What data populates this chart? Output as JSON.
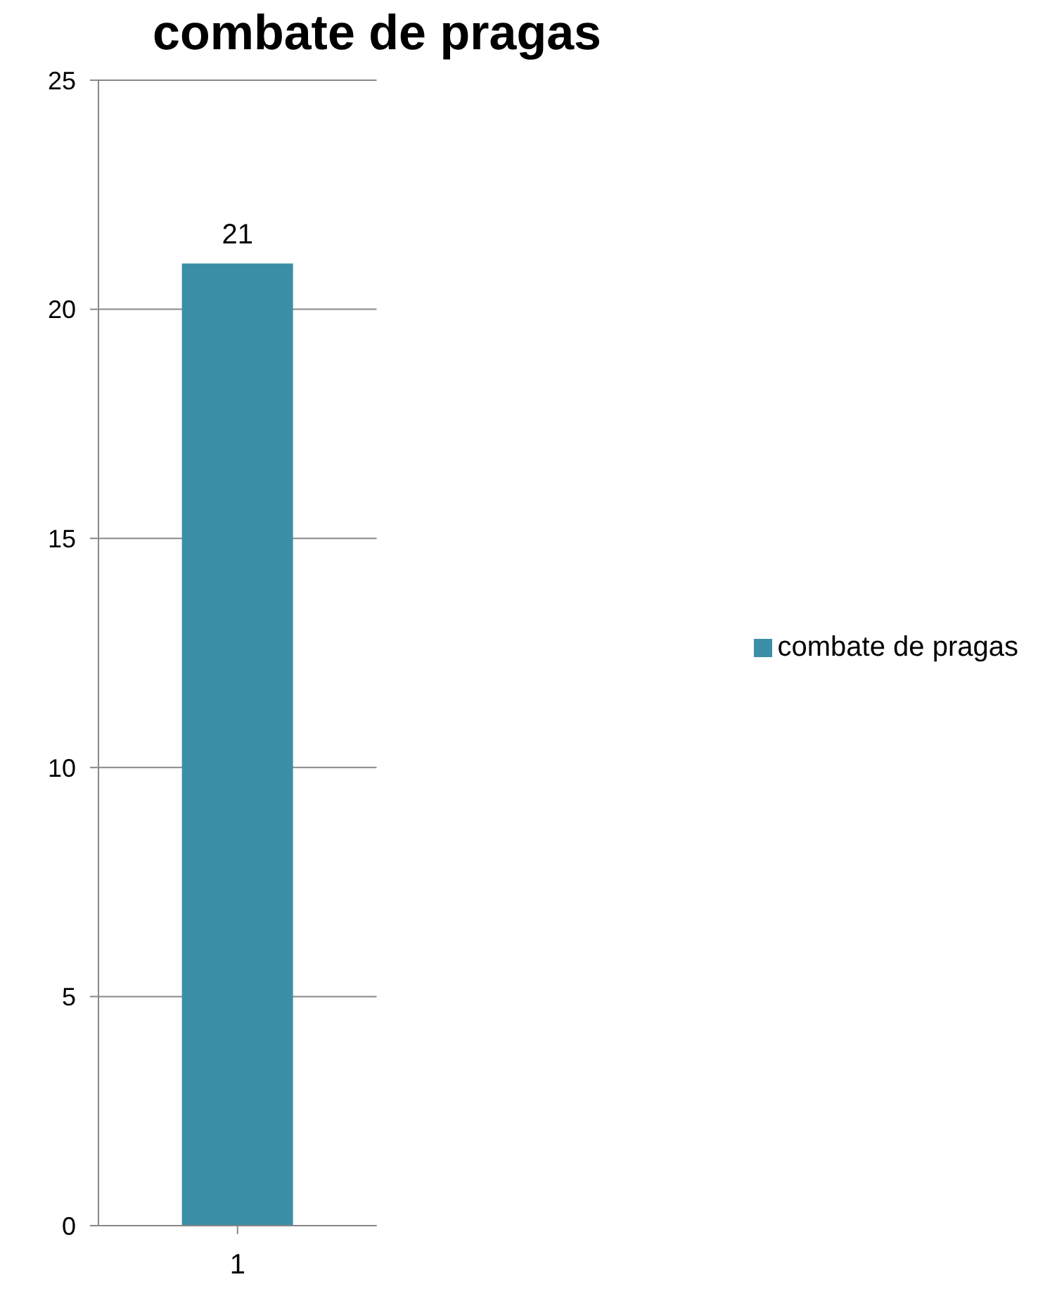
{
  "chart_data": {
    "type": "bar",
    "title": "combate de pragas",
    "categories": [
      "1"
    ],
    "series": [
      {
        "name": "combate de pragas",
        "color": "#3a8fa6",
        "values": [
          21
        ]
      }
    ],
    "ylim": [
      0,
      25
    ],
    "yticks": [
      0,
      5,
      10,
      15,
      20,
      25
    ],
    "grid": "y",
    "legend": "right",
    "data_labels": true
  }
}
